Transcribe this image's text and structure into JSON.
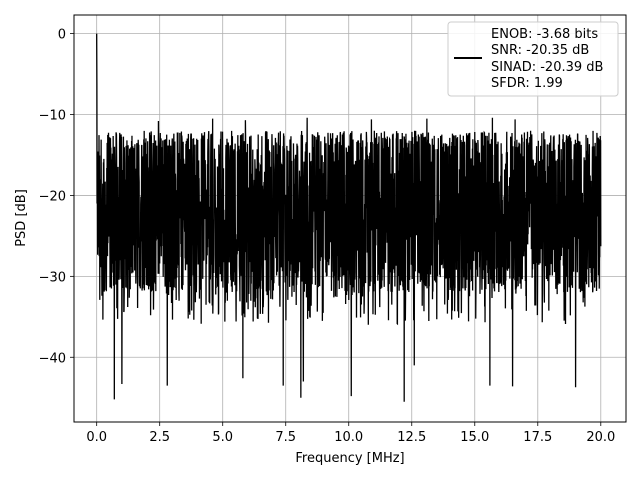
{
  "chart_data": {
    "type": "line",
    "xlabel": "Frequency [MHz]",
    "ylabel": "PSD [dB]",
    "xlim": [
      -0.9,
      21.0
    ],
    "ylim": [
      -48,
      2.3
    ],
    "x_ticks": [
      0.0,
      2.5,
      5.0,
      7.5,
      10.0,
      12.5,
      15.0,
      17.5,
      20.0
    ],
    "x_tick_labels": [
      "0.0",
      "2.5",
      "5.0",
      "7.5",
      "10.0",
      "12.5",
      "15.0",
      "17.5",
      "20.0"
    ],
    "y_ticks": [
      0,
      -10,
      -20,
      -30,
      -40
    ],
    "y_tick_labels": [
      "0",
      "−10",
      "−20",
      "−30",
      "−40"
    ],
    "grid": true,
    "legend_position": "top-right",
    "series": [
      {
        "name": "ENOB: -3.68 bits\nSNR: -20.35 dB\nSINAD: -20.39 dB\nSFDR: 1.99",
        "legend_lines": [
          "ENOB: -3.68 bits",
          "SNR: -20.35 dB",
          "SINAD: -20.39 dB",
          "SFDR: 1.99"
        ],
        "color": "#000000",
        "x_range": [
          0.0,
          20.0
        ],
        "dense_noise_band": [
          -32,
          -12
        ],
        "peak": {
          "x": 0.0,
          "y": 0.0
        },
        "spikes_up": [
          {
            "x": 2.45,
            "y": -10.8
          },
          {
            "x": 4.6,
            "y": -10.5
          },
          {
            "x": 5.9,
            "y": -10.7
          },
          {
            "x": 8.35,
            "y": -10.4
          },
          {
            "x": 10.9,
            "y": -10.6
          },
          {
            "x": 13.1,
            "y": -10.5
          },
          {
            "x": 15.7,
            "y": -10.4
          },
          {
            "x": 16.6,
            "y": -10.6
          }
        ],
        "spikes_down": [
          {
            "x": 0.7,
            "y": -45.2
          },
          {
            "x": 1.0,
            "y": -43.3
          },
          {
            "x": 2.8,
            "y": -43.5
          },
          {
            "x": 5.8,
            "y": -42.6
          },
          {
            "x": 7.4,
            "y": -43.5
          },
          {
            "x": 8.2,
            "y": -43.0
          },
          {
            "x": 8.1,
            "y": -45.0
          },
          {
            "x": 10.1,
            "y": -44.8
          },
          {
            "x": 12.2,
            "y": -45.5
          },
          {
            "x": 12.6,
            "y": -41.0
          },
          {
            "x": 15.6,
            "y": -43.5
          },
          {
            "x": 16.5,
            "y": -43.6
          },
          {
            "x": 19.0,
            "y": -43.7
          }
        ]
      }
    ]
  }
}
